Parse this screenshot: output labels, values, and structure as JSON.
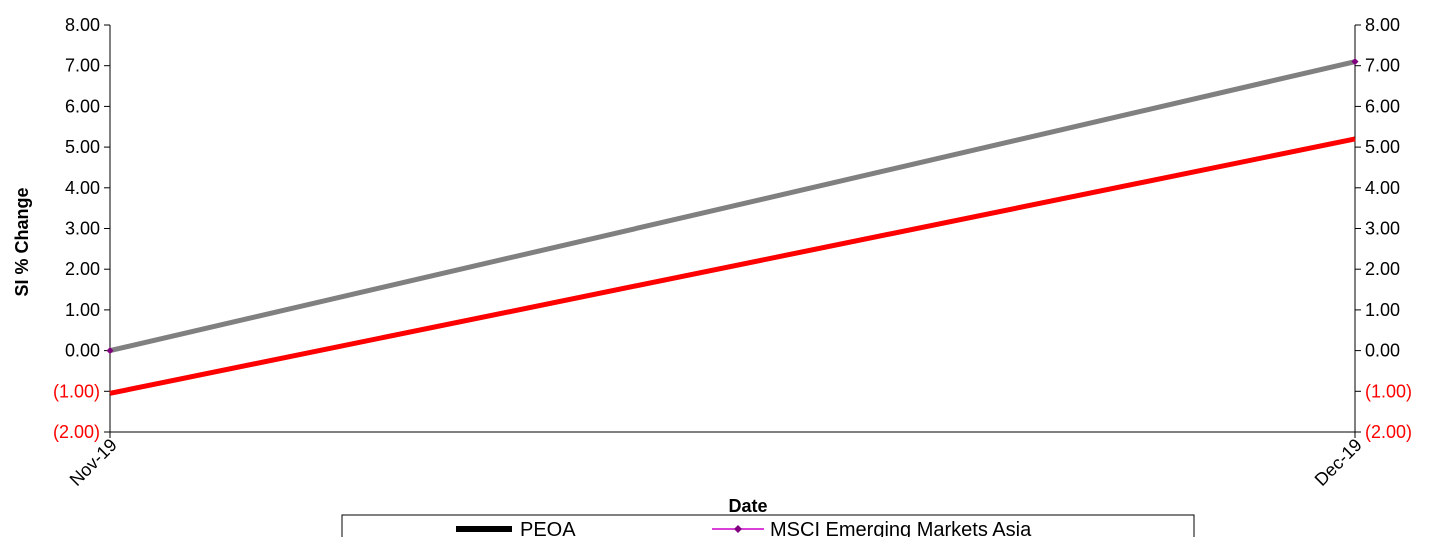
{
  "chart_data": {
    "type": "line",
    "x": [
      "Nov-19",
      "Dec-19"
    ],
    "series": [
      {
        "name": "PEOA",
        "values": [
          -1.05,
          5.2
        ],
        "color": "#ff0000"
      },
      {
        "name": "MSCI Emerging Markets Asia",
        "values": [
          0.0,
          7.1
        ],
        "color": "#808080",
        "marker_color": "#800080"
      }
    ],
    "xlabel": "Date",
    "ylabel": "SI % Change",
    "ylim": [
      -2,
      8
    ],
    "yticks": [
      "(2.00)",
      "(1.00)",
      "0.00",
      "1.00",
      "2.00",
      "3.00",
      "4.00",
      "5.00",
      "6.00",
      "7.00",
      "8.00"
    ],
    "negative_tick_color": "#ff0000",
    "secondary_y_axis": true,
    "grid": false,
    "legend": {
      "position": "bottom",
      "entries": [
        {
          "label": "PEOA",
          "swatch_color": "#000000"
        },
        {
          "label": "MSCI Emerging Markets Asia",
          "swatch_color": "#cc00cc",
          "marker_color": "#800080"
        }
      ]
    }
  }
}
